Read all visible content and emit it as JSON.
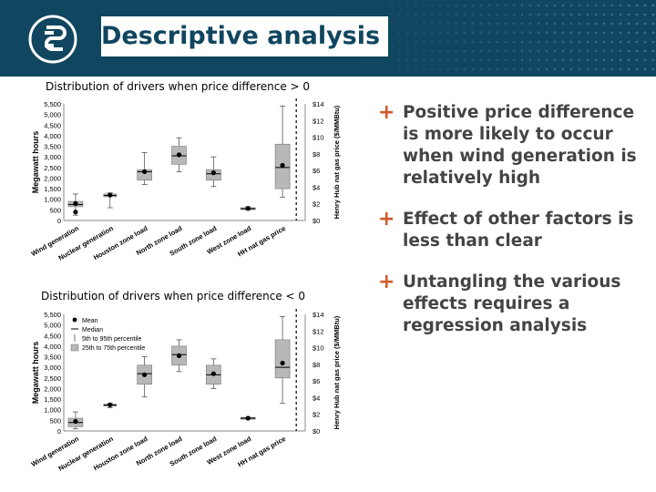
{
  "header": {
    "title": "Descriptive analysis",
    "logo_icon": "company-logo-icon"
  },
  "colors": {
    "header_bg": "#10465f",
    "accent": "#d05a2a",
    "box_fill": "#b8b8b8"
  },
  "bullets": [
    "Positive price difference is more likely to occur when wind generation is relatively high",
    "Effect of other factors is less than clear",
    "Untangling the various effects requires a regression analysis"
  ],
  "chart_data": [
    {
      "type": "box",
      "title": "Distribution of drivers when price difference > 0",
      "ylabel": "Megawatt hours",
      "y2label": "Henry Hub nat gas price ($/MMBtu)",
      "ylim": [
        0,
        5500
      ],
      "y2lim": [
        0,
        14
      ],
      "yticks": [
        "5,500",
        "5,000",
        "4,500",
        "4,000",
        "3,500",
        "3,000",
        "2,500",
        "2,000",
        "1,500",
        "1,000",
        "500",
        "0"
      ],
      "y2ticks": [
        "$14",
        "$12",
        "$10",
        "$8",
        "$6",
        "$4",
        "$2",
        "$0"
      ],
      "categories": [
        "Wind generation",
        "Nuclear generation",
        "Houston zone load",
        "North zone load",
        "South zone load",
        "West zone load",
        "HH nat gas price"
      ],
      "boxes": [
        {
          "lo": 250,
          "q1": 650,
          "median": 750,
          "mean": 800,
          "q3": 900,
          "hi": 1250,
          "mean2": 400
        },
        {
          "lo": 600,
          "q1": 1120,
          "median": 1180,
          "mean": 1200,
          "q3": 1250,
          "hi": 1300
        },
        {
          "lo": 1700,
          "q1": 1900,
          "median": 2300,
          "mean": 2300,
          "q3": 2400,
          "hi": 3200
        },
        {
          "lo": 2300,
          "q1": 2650,
          "median": 3050,
          "mean": 3100,
          "q3": 3500,
          "hi": 3900
        },
        {
          "lo": 1600,
          "q1": 1900,
          "median": 2200,
          "mean": 2250,
          "q3": 2400,
          "hi": 3000
        },
        {
          "lo": 500,
          "q1": 530,
          "median": 560,
          "mean": 570,
          "q3": 600,
          "hi": 650
        },
        {
          "lo": 1100,
          "q1": 1500,
          "median": 2500,
          "mean": 2600,
          "q3": 3600,
          "hi": 5400
        }
      ]
    },
    {
      "type": "box",
      "title": "Distribution of drivers when price difference < 0",
      "ylabel": "Megawatt hours",
      "y2label": "Henry Hub nat gas price ($/MMBtu)",
      "ylim": [
        0,
        5500
      ],
      "y2lim": [
        0,
        14
      ],
      "yticks": [
        "5,500",
        "5,000",
        "4,500",
        "4,000",
        "3,500",
        "3,000",
        "2,500",
        "2,000",
        "1,500",
        "1,000",
        "500",
        "0"
      ],
      "y2ticks": [
        "$14",
        "$12",
        "$10",
        "$8",
        "$6",
        "$4",
        "$2",
        "$0"
      ],
      "legend": [
        "Mean",
        "Median",
        "5th to 95th percentile",
        "25th to 75th percentile"
      ],
      "categories": [
        "Wind generation",
        "Nuclear generation",
        "Houston zone load",
        "North zone load",
        "South zone load",
        "West zone load",
        "HH nat gas price"
      ],
      "boxes": [
        {
          "lo": 100,
          "q1": 200,
          "median": 400,
          "mean": 450,
          "q3": 600,
          "hi": 900
        },
        {
          "lo": 1100,
          "q1": 1180,
          "median": 1220,
          "mean": 1230,
          "q3": 1260,
          "hi": 1300
        },
        {
          "lo": 1600,
          "q1": 2200,
          "median": 2700,
          "mean": 2650,
          "q3": 3100,
          "hi": 3500
        },
        {
          "lo": 2800,
          "q1": 3100,
          "median": 3600,
          "mean": 3550,
          "q3": 4000,
          "hi": 4300
        },
        {
          "lo": 2000,
          "q1": 2200,
          "median": 2650,
          "mean": 2700,
          "q3": 3100,
          "hi": 3400
        },
        {
          "lo": 560,
          "q1": 570,
          "median": 600,
          "mean": 600,
          "q3": 640,
          "hi": 650
        },
        {
          "lo": 1300,
          "q1": 2500,
          "median": 3000,
          "mean": 3200,
          "q3": 4300,
          "hi": 5400
        }
      ]
    }
  ]
}
